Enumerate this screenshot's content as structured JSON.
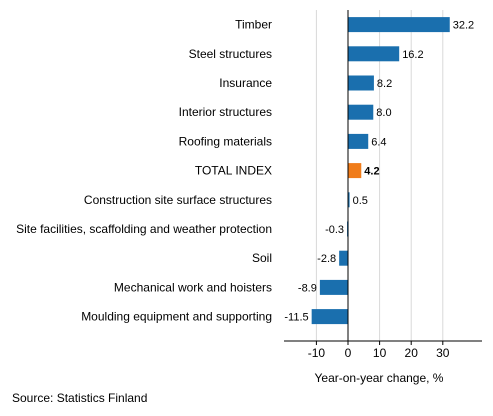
{
  "chart_data": {
    "type": "bar",
    "orientation": "horizontal",
    "categories": [
      "Timber",
      "Steel structures",
      "Insurance",
      "Interior structures",
      "Roofing materials",
      "TOTAL INDEX",
      "Construction site surface structures",
      "Site facilities, scaffolding and weather protection",
      "Soil",
      "Mechanical work and hoisters",
      "Moulding equipment and supporting"
    ],
    "values": [
      32.2,
      16.2,
      8.2,
      8.0,
      6.4,
      4.2,
      0.5,
      -0.3,
      -2.8,
      -8.9,
      -11.5
    ],
    "value_labels": [
      "32.2",
      "16.2",
      "8.2",
      "8.0",
      "6.4",
      "4.2",
      "0.5",
      "-0.3",
      "-2.8",
      "-8.9",
      "-11.5"
    ],
    "highlight_category": "TOTAL INDEX",
    "xlabel": "Year-on-year change, %",
    "xlim": [
      -20,
      40
    ],
    "xticks": [
      -10,
      0,
      10,
      20,
      30
    ],
    "xtick_labels": [
      "-10",
      "0",
      "10",
      "20",
      "30"
    ],
    "grid": "vertical",
    "colors": {
      "bar": "#1a6fae",
      "highlight": "#f07c1a",
      "grid": "#d9d9d9",
      "axis": "#000000"
    }
  },
  "source": "Source: Statistics Finland"
}
